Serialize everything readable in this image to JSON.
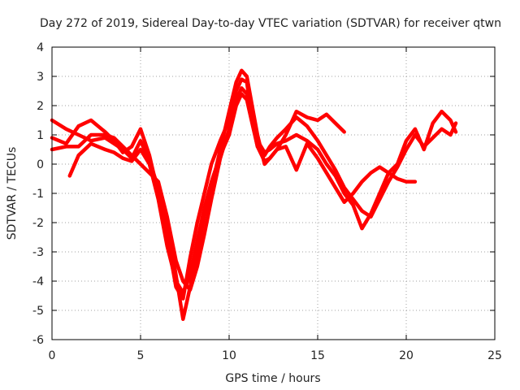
{
  "chart_data": {
    "type": "scatter",
    "title": "Day 272 of 2019, Sidereal Day-to-day VTEC variation (SDTVAR) for receiver qtwn",
    "xlabel": "GPS time / hours",
    "ylabel": "SDTVAR / TECUs",
    "xlim": [
      0,
      25
    ],
    "ylim": [
      -6,
      4
    ],
    "xticks": [
      "0",
      "5",
      "10",
      "15",
      "20",
      "25"
    ],
    "yticks": [
      "-6",
      "-5",
      "-4",
      "-3",
      "-2",
      "-1",
      "0",
      "1",
      "2",
      "3",
      "4"
    ],
    "grid": true,
    "legend": "none",
    "marker": "+",
    "color": "#ff0000",
    "series": [
      {
        "x": [
          0.0,
          0.8,
          1.5,
          2.2,
          3.0,
          3.5,
          4.0,
          4.5,
          5.0,
          5.5,
          6.0,
          6.5,
          7.0,
          7.4,
          7.8,
          8.2,
          8.6,
          9.0,
          9.5,
          10.0,
          10.4,
          10.7,
          11.0,
          11.3,
          11.6,
          12.0,
          12.3,
          12.7,
          13.2,
          13.8,
          14.4,
          15.0,
          15.5,
          16.0,
          16.5,
          17.0,
          17.5,
          18.0,
          18.5,
          19.0,
          19.5,
          20.0,
          20.5,
          21.0,
          21.5,
          22.0,
          22.5,
          22.8
        ],
        "y": [
          1.5,
          1.2,
          1.0,
          0.8,
          0.9,
          0.7,
          0.5,
          0.2,
          0.8,
          0.1,
          -0.8,
          -2.0,
          -3.8,
          -5.3,
          -4.2,
          -3.0,
          -1.8,
          -0.8,
          0.5,
          1.8,
          2.8,
          3.2,
          3.0,
          2.0,
          1.0,
          0.0,
          0.2,
          0.5,
          1.0,
          1.8,
          1.6,
          1.5,
          1.7,
          1.4,
          1.1,
          null,
          null,
          null,
          null,
          null,
          null,
          null,
          null,
          null,
          null,
          null,
          null,
          null
        ]
      },
      {
        "x": [
          0.0,
          0.8,
          1.5,
          2.2,
          3.0,
          3.5,
          4.0,
          4.5,
          5.0,
          5.5,
          6.0,
          6.5,
          7.0,
          7.4,
          7.8,
          8.2,
          8.6,
          9.0,
          9.5,
          10.0,
          10.4,
          10.7,
          11.0,
          11.3,
          11.6,
          12.0,
          12.3,
          12.7,
          13.2,
          13.8,
          14.4,
          15.0,
          15.5,
          16.0,
          16.5,
          17.0,
          17.5,
          18.0,
          18.5,
          19.0,
          19.5,
          20.0,
          20.5,
          21.0,
          21.5,
          22.0,
          22.5,
          22.8
        ],
        "y": [
          0.9,
          0.7,
          1.3,
          1.5,
          1.1,
          0.8,
          0.4,
          0.6,
          1.2,
          0.3,
          -1.0,
          -2.5,
          -4.2,
          -4.6,
          -3.2,
          -2.0,
          -1.0,
          0.0,
          0.8,
          1.5,
          2.5,
          2.9,
          2.8,
          1.5,
          0.6,
          0.3,
          0.6,
          0.9,
          1.2,
          1.6,
          1.3,
          0.8,
          0.3,
          -0.2,
          -0.8,
          -1.2,
          -1.6,
          -1.8,
          -1.2,
          -0.6,
          -0.1,
          0.5,
          1.0,
          0.6,
          0.9,
          1.2,
          1.0,
          1.4
        ]
      },
      {
        "x": [
          0.0,
          0.8,
          1.5,
          2.2,
          3.0,
          3.5,
          4.0,
          4.5,
          5.0,
          5.5,
          6.0,
          6.5,
          7.0,
          7.4,
          7.8,
          8.2,
          8.6,
          9.0,
          9.5,
          10.0,
          10.4,
          10.7,
          11.0,
          11.3,
          11.6,
          12.0,
          12.3,
          12.7,
          13.2,
          13.8,
          14.4,
          15.0,
          15.5,
          16.0,
          16.5,
          17.0,
          17.5,
          18.0,
          18.5,
          19.0,
          19.5,
          20.0,
          20.5,
          21.0,
          21.5,
          22.0,
          22.5,
          22.8
        ],
        "y": [
          0.5,
          0.6,
          0.6,
          1.0,
          1.0,
          0.9,
          0.6,
          0.3,
          0.0,
          -0.3,
          -0.6,
          -1.8,
          -3.3,
          -4.0,
          -4.3,
          -3.5,
          -2.4,
          -1.2,
          0.2,
          1.2,
          2.2,
          2.6,
          2.4,
          1.7,
          0.8,
          0.4,
          0.5,
          0.7,
          0.8,
          1.0,
          0.8,
          0.5,
          0.0,
          -0.4,
          -1.0,
          -1.4,
          -2.2,
          -1.7,
          -1.0,
          -0.3,
          0.0,
          0.8,
          1.2,
          0.5,
          1.4,
          1.8,
          1.5,
          1.1
        ]
      },
      {
        "x": [
          1.0,
          1.5,
          2.2,
          3.0,
          3.5,
          4.0,
          4.5,
          5.0,
          5.5,
          6.0,
          6.5,
          7.0,
          7.4,
          7.8,
          8.2,
          8.6,
          9.0,
          9.5,
          10.0,
          10.4,
          10.7,
          11.0,
          11.3,
          11.6,
          12.0,
          12.3,
          12.7,
          13.2,
          13.8,
          14.4,
          15.0,
          15.5,
          16.0,
          16.5,
          17.0,
          17.5,
          18.0,
          18.5,
          19.0,
          19.5,
          20.0,
          20.5
        ],
        "y": [
          -0.4,
          0.3,
          0.7,
          0.5,
          0.4,
          0.2,
          0.1,
          0.5,
          0.0,
          -1.2,
          -2.8,
          -4.0,
          -4.4,
          -3.8,
          -2.6,
          -1.5,
          -0.6,
          0.3,
          1.0,
          2.0,
          2.4,
          2.2,
          1.4,
          0.6,
          0.1,
          0.2,
          0.5,
          0.6,
          -0.2,
          0.7,
          0.2,
          -0.3,
          -0.8,
          -1.3,
          -1.0,
          -0.6,
          -0.3,
          -0.1,
          -0.3,
          -0.5,
          -0.6,
          -0.6
        ]
      }
    ]
  }
}
